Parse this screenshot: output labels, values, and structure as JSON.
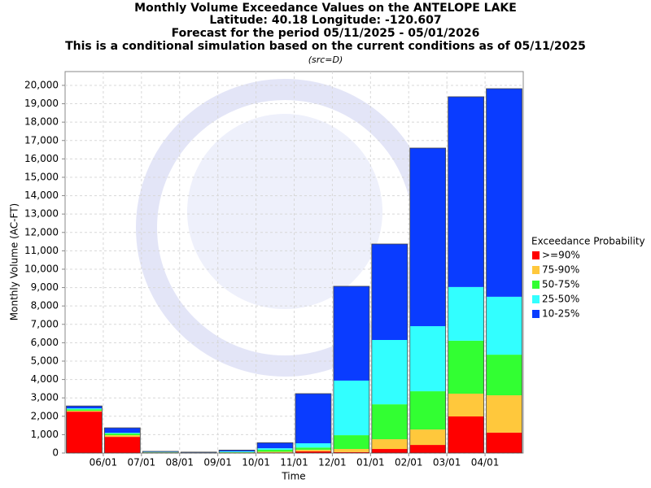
{
  "chart_data": {
    "type": "stacked_bar",
    "title": [
      "Monthly Volume Exceedance Values on the ANTELOPE LAKE",
      "Latitude: 40.18 Longitude: -120.607",
      "Forecast for the period 05/11/2025 - 05/01/2026",
      "This is a conditional simulation based on the current conditions as of 05/11/2025"
    ],
    "subtitle": "(src=D)",
    "x_label": "Time",
    "y_label": "Monthly Volume (AC-FT)",
    "legend_title": "Exceedance Probability",
    "legend": "right",
    "grid": true,
    "categories": [
      null,
      "06/01",
      "07/01",
      "08/01",
      "09/01",
      "10/01",
      "11/01",
      "12/01",
      "01/01",
      "02/01",
      "03/01",
      "04/01"
    ],
    "series": [
      {
        "name": ">=90%",
        "color": "#ff0000",
        "values": [
          2250,
          880,
          20,
          10,
          20,
          30,
          90,
          50,
          220,
          440,
          1990,
          1110
        ]
      },
      {
        "name": "75-90%",
        "color": "#ffc83c",
        "values": [
          50,
          90,
          10,
          5,
          10,
          40,
          90,
          170,
          530,
          840,
          1240,
          2030
        ]
      },
      {
        "name": "50-75%",
        "color": "#32ff32",
        "values": [
          80,
          90,
          10,
          5,
          20,
          110,
          120,
          750,
          1900,
          2080,
          2880,
          2210
        ]
      },
      {
        "name": "25-50%",
        "color": "#32ffff",
        "values": [
          50,
          40,
          20,
          10,
          40,
          80,
          230,
          2970,
          3500,
          3540,
          2920,
          3150
        ]
      },
      {
        "name": "10-25%",
        "color": "#0a3cff",
        "values": [
          130,
          270,
          30,
          20,
          70,
          300,
          2700,
          5130,
          5220,
          9690,
          10350,
          11320
        ]
      }
    ],
    "ylim": [
      0,
      20750
    ],
    "yticks": [
      0,
      {
        "value": 1000,
        "label": "1,000"
      },
      {
        "value": 2000,
        "label": "2,000"
      },
      {
        "value": 3000,
        "label": "3,000"
      },
      {
        "value": 4000,
        "label": "4,000"
      },
      {
        "value": 5000,
        "label": "5,000"
      },
      {
        "value": 6000,
        "label": "6,000"
      },
      {
        "value": 7000,
        "label": "7,000"
      },
      {
        "value": 8000,
        "label": "8,000"
      },
      {
        "value": 9000,
        "label": "9,000"
      },
      {
        "value": 10000,
        "label": "10,000"
      },
      {
        "value": 11000,
        "label": "11,000"
      },
      {
        "value": 12000,
        "label": "12,000"
      },
      {
        "value": 13000,
        "label": "13,000"
      },
      {
        "value": 14000,
        "label": "14,000"
      },
      {
        "value": 15000,
        "label": "15,000"
      },
      {
        "value": 16000,
        "label": "16,000"
      },
      {
        "value": 17000,
        "label": "17,000"
      },
      {
        "value": 18000,
        "label": "18,000"
      },
      {
        "value": 19000,
        "label": "19,000"
      },
      {
        "value": 20000,
        "label": "20,000"
      }
    ]
  }
}
